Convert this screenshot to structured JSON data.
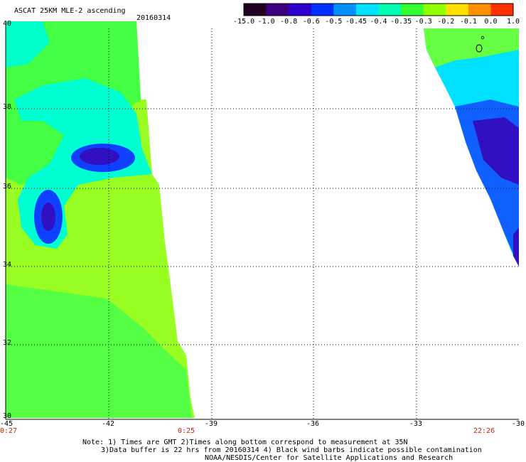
{
  "header": {
    "title": "ASCAT 25KM MLE-2 ascending",
    "date": "20160314"
  },
  "colorbar": {
    "labels": [
      "-15.0",
      "-1.0",
      "-0.8",
      "-0.6",
      "-0.5",
      "-0.45",
      "-0.4",
      "-0.35",
      "-0.3",
      "-0.2",
      "-0.1",
      "0.0",
      "1.0"
    ],
    "colors": [
      "#200020",
      "#3a0080",
      "#2a00cc",
      "#0030ff",
      "#0090ff",
      "#00e0ff",
      "#00ffb0",
      "#30ff30",
      "#90ff00",
      "#ffe000",
      "#ff9000",
      "#ff3000"
    ]
  },
  "axes": {
    "lon_ticks": [
      "-45",
      "-42",
      "-39",
      "-36",
      "-33",
      "-30"
    ],
    "lat_ticks": [
      "40",
      "38",
      "36",
      "34",
      "32",
      "30"
    ]
  },
  "swath_times": {
    "left_start": "0:27",
    "left_end": "0:25",
    "right": "22:26"
  },
  "notes": {
    "line1": "Note: 1) Times are GMT 2)Times along bottom correspond to measurement at 35N",
    "line2": "3)Data buffer is 22 hrs from 20160314 4) Black wind barbs indicate possible contamination",
    "line3": "NOAA/NESDIS/Center for Satellite Applications and Research"
  }
}
